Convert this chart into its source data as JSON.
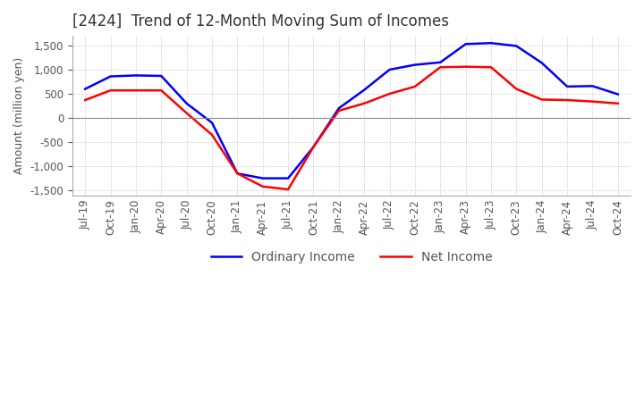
{
  "title": "[2424]  Trend of 12-Month Moving Sum of Incomes",
  "ylabel": "Amount (million yen)",
  "ylim": [
    -1600,
    1700
  ],
  "yticks": [
    -1500,
    -1000,
    -500,
    0,
    500,
    1000,
    1500
  ],
  "x_labels": [
    "Jul-19",
    "Oct-19",
    "Jan-20",
    "Apr-20",
    "Jul-20",
    "Oct-20",
    "Jan-21",
    "Apr-21",
    "Jul-21",
    "Oct-21",
    "Jan-22",
    "Apr-22",
    "Jul-22",
    "Oct-22",
    "Jan-23",
    "Apr-23",
    "Jul-23",
    "Oct-23",
    "Jan-24",
    "Apr-24",
    "Jul-24",
    "Oct-24"
  ],
  "ordinary_income": [
    600,
    860,
    880,
    870,
    300,
    -100,
    -1150,
    -1250,
    -1250,
    -600,
    200,
    580,
    1000,
    1100,
    1150,
    1530,
    1550,
    1490,
    1140,
    650,
    660,
    490
  ],
  "net_income": [
    370,
    570,
    570,
    570,
    100,
    -350,
    -1150,
    -1420,
    -1480,
    -600,
    150,
    300,
    500,
    650,
    1050,
    1060,
    1050,
    600,
    380,
    370,
    340,
    300
  ],
  "ordinary_color": "#0000ff",
  "net_color": "#ff0000",
  "grid_color": "#aaaaaa",
  "zero_line_color": "#888888",
  "background_color": "#ffffff",
  "title_fontsize": 12,
  "legend_fontsize": 10,
  "axis_fontsize": 8.5
}
